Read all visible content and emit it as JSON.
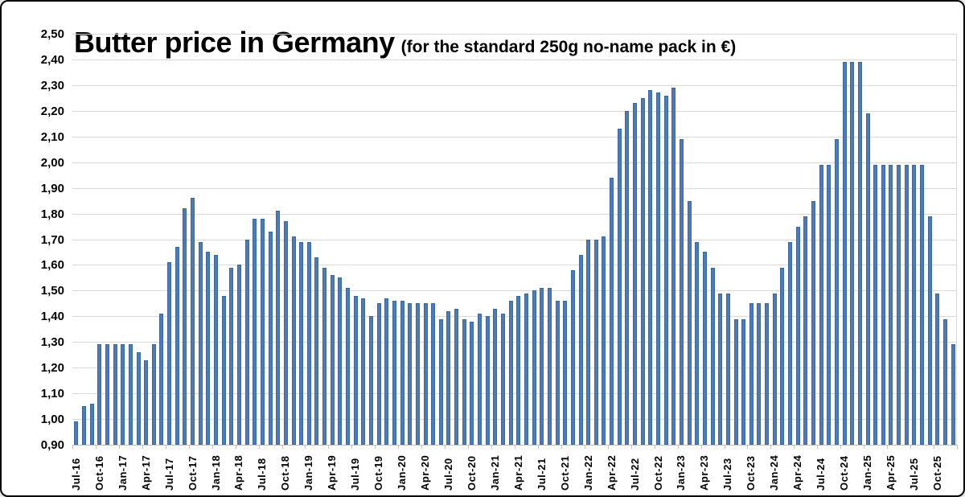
{
  "title": {
    "main": "Butter price in Germany",
    "sub": "(for the standard 250g no-name pack in €)"
  },
  "chart_data": {
    "type": "bar",
    "title": "Butter price in Germany (for the standard 250g no-name pack in €)",
    "xlabel": "",
    "ylabel": "",
    "unit": "EUR",
    "ylim": [
      0.9,
      2.5
    ],
    "y_tick_step": 0.1,
    "grid": true,
    "x_label_every": 3,
    "y_tick_labels": [
      "2,50",
      "2,40",
      "2,30",
      "2,20",
      "2,10",
      "2,00",
      "1,90",
      "1,80",
      "1,70",
      "1,60",
      "1,50",
      "1,40",
      "1,30",
      "1,20",
      "1,10",
      "1,00",
      "0,90"
    ],
    "bar_color": "#4a7cbd",
    "bar_border_color": "#3c689f",
    "months": [
      "Jul-16",
      "Aug-16",
      "Sep-16",
      "Oct-16",
      "Nov-16",
      "Dec-16",
      "Jan-17",
      "Feb-17",
      "Mar-17",
      "Apr-17",
      "May-17",
      "Jun-17",
      "Jul-17",
      "Aug-17",
      "Sep-17",
      "Oct-17",
      "Nov-17",
      "Dec-17",
      "Jan-18",
      "Feb-18",
      "Mar-18",
      "Apr-18",
      "May-18",
      "Jun-18",
      "Jul-18",
      "Aug-18",
      "Sep-18",
      "Oct-18",
      "Nov-18",
      "Dec-18",
      "Jan-19",
      "Feb-19",
      "Mar-19",
      "Apr-19",
      "May-19",
      "Jun-19",
      "Jul-19",
      "Aug-19",
      "Sep-19",
      "Oct-19",
      "Nov-19",
      "Dec-19",
      "Jan-20",
      "Feb-20",
      "Mar-20",
      "Apr-20",
      "May-20",
      "Jun-20",
      "Jul-20",
      "Aug-20",
      "Sep-20",
      "Oct-20",
      "Nov-20",
      "Dec-20",
      "Jan-21",
      "Feb-21",
      "Mar-21",
      "Apr-21",
      "May-21",
      "Jun-21",
      "Jul-21",
      "Aug-21",
      "Sep-21",
      "Oct-21",
      "Nov-21",
      "Dec-21",
      "Jan-22",
      "Feb-22",
      "Mar-22",
      "Apr-22",
      "May-22",
      "Jun-22",
      "Jul-22",
      "Aug-22",
      "Sep-22",
      "Oct-22",
      "Nov-22",
      "Dec-22",
      "Jan-23",
      "Feb-23",
      "Mar-23",
      "Apr-23",
      "May-23",
      "Jun-23",
      "Jul-23",
      "Aug-23",
      "Sep-23",
      "Oct-23",
      "Nov-23",
      "Dec-23",
      "Jan-24",
      "Feb-24",
      "Mar-24",
      "Apr-24",
      "May-24",
      "Jun-24",
      "Jul-24",
      "Aug-24",
      "Sep-24",
      "Oct-24",
      "Nov-24",
      "Dec-24",
      "Jan-25",
      "Feb-25",
      "Mar-25",
      "Apr-25",
      "May-25",
      "Jun-25",
      "Jul-25",
      "Aug-25",
      "Sep-25",
      "Oct-25",
      "Nov-25",
      "Dec-25"
    ],
    "values": [
      0.99,
      1.05,
      1.06,
      1.29,
      1.29,
      1.29,
      1.29,
      1.29,
      1.26,
      1.23,
      1.29,
      1.41,
      1.61,
      1.67,
      1.82,
      1.86,
      1.69,
      1.65,
      1.64,
      1.48,
      1.59,
      1.6,
      1.7,
      1.78,
      1.78,
      1.73,
      1.81,
      1.77,
      1.71,
      1.69,
      1.69,
      1.63,
      1.59,
      1.56,
      1.55,
      1.51,
      1.48,
      1.47,
      1.4,
      1.45,
      1.47,
      1.46,
      1.46,
      1.45,
      1.45,
      1.45,
      1.45,
      1.39,
      1.42,
      1.43,
      1.39,
      1.38,
      1.41,
      1.4,
      1.43,
      1.41,
      1.46,
      1.48,
      1.49,
      1.5,
      1.51,
      1.51,
      1.46,
      1.46,
      1.58,
      1.64,
      1.7,
      1.7,
      1.71,
      1.94,
      2.13,
      2.2,
      2.23,
      2.25,
      2.28,
      2.27,
      2.26,
      2.29,
      2.09,
      1.85,
      1.69,
      1.65,
      1.59,
      1.49,
      1.49,
      1.39,
      1.39,
      1.45,
      1.45,
      1.45,
      1.49,
      1.59,
      1.69,
      1.75,
      1.79,
      1.85,
      1.99,
      1.99,
      2.09,
      2.39,
      2.39,
      2.39,
      2.19,
      1.99,
      1.99,
      1.99,
      1.99,
      1.99,
      1.99,
      1.99,
      1.79,
      1.49,
      1.39,
      1.29
    ]
  }
}
